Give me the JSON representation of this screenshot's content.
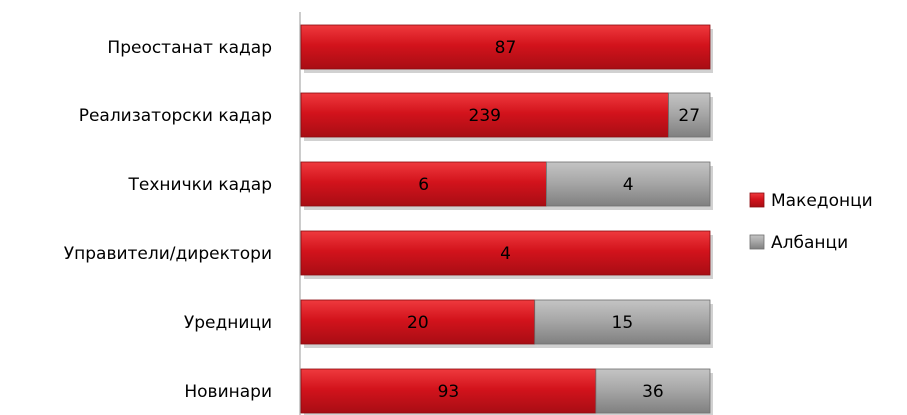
{
  "chart_data": {
    "type": "bar",
    "orientation": "horizontal",
    "stacked": "percent",
    "categories": [
      "Преостанат кадар",
      "Реализаторски кадар",
      "Технички кадар",
      "Управители/директори",
      "Уредници",
      "Новинари"
    ],
    "series": [
      {
        "name": "Македонци",
        "color": "#d0141e",
        "values": [
          87,
          239,
          6,
          4,
          20,
          93
        ],
        "labels": [
          "87",
          "239",
          "6",
          "4",
          "20",
          "93"
        ]
      },
      {
        "name": "Албанци",
        "color": "#a6a6a6",
        "values": [
          0,
          27,
          4,
          0,
          15,
          36
        ],
        "labels": [
          "",
          "27",
          "4",
          "",
          "15",
          "36"
        ]
      }
    ],
    "legend_position": "right",
    "grid": false
  }
}
